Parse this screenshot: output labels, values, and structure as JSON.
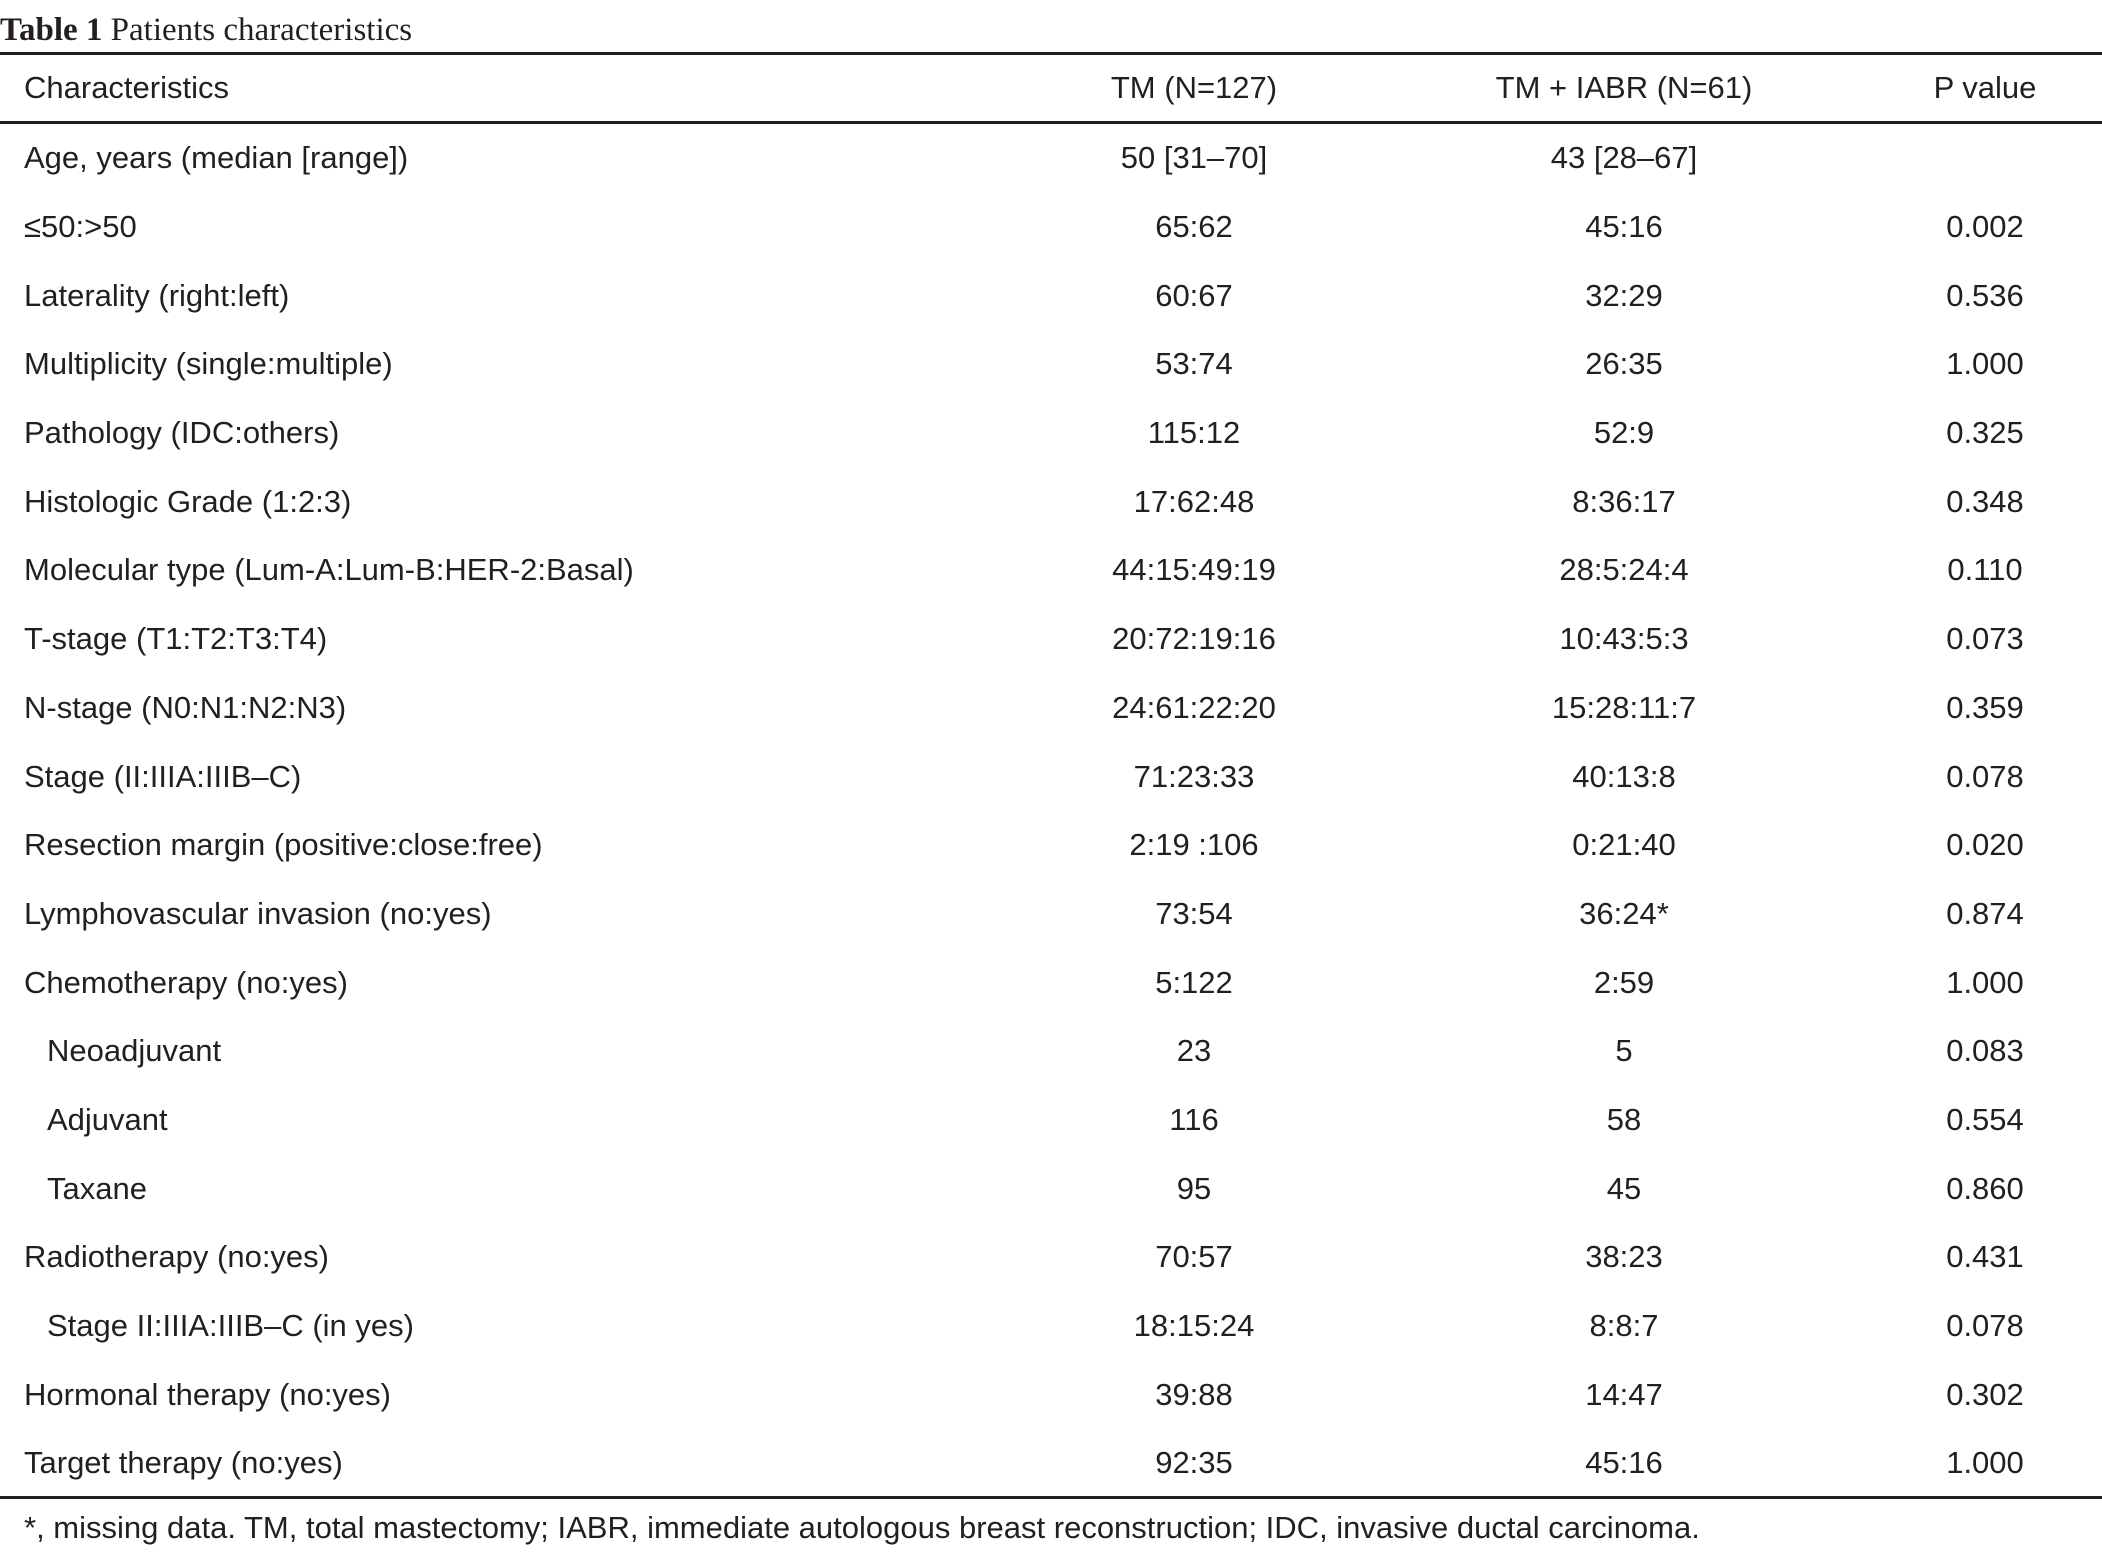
{
  "caption": {
    "label": "Table 1",
    "text": "Patients characteristics"
  },
  "table": {
    "headers": [
      "Characteristics",
      "TM (N=127)",
      "TM + IABR (N=61)",
      "P value"
    ],
    "rows": [
      [
        "Age, years (median [range])",
        "50 [31–70]",
        "43 [28–67]",
        ""
      ],
      [
        "≤50:>50",
        "65:62",
        "45:16",
        "0.002"
      ],
      [
        "Laterality (right:left)",
        "60:67",
        "32:29",
        "0.536"
      ],
      [
        "Multiplicity (single:multiple)",
        "53:74",
        "26:35",
        "1.000"
      ],
      [
        "Pathology (IDC:others)",
        "115:12",
        "52:9",
        "0.325"
      ],
      [
        "Histologic Grade (1:2:3)",
        "17:62:48",
        "8:36:17",
        "0.348"
      ],
      [
        "Molecular type (Lum-A:Lum-B:HER-2:Basal)",
        "44:15:49:19",
        "28:5:24:4",
        "0.110"
      ],
      [
        "T-stage (T1:T2:T3:T4)",
        "20:72:19:16",
        "10:43:5:3",
        "0.073"
      ],
      [
        "N-stage (N0:N1:N2:N3)",
        "24:61:22:20",
        "15:28:11:7",
        "0.359"
      ],
      [
        "Stage (II:IIIA:IIIB–C)",
        "71:23:33",
        "40:13:8",
        "0.078"
      ],
      [
        "Resection margin (positive:close:free)",
        "2:19 :106",
        "0:21:40",
        "0.020"
      ],
      [
        "Lymphovascular invasion (no:yes)",
        "73:54",
        "36:24*",
        "0.874"
      ],
      [
        "Chemotherapy (no:yes)",
        "5:122",
        "2:59",
        "1.000"
      ],
      [
        "Neoadjuvant",
        "23",
        "5",
        "0.083"
      ],
      [
        "Adjuvant",
        "116",
        "58",
        "0.554"
      ],
      [
        "Taxane",
        "95",
        "45",
        "0.860"
      ],
      [
        "Radiotherapy (no:yes)",
        "70:57",
        "38:23",
        "0.431"
      ],
      [
        "Stage II:IIIA:IIIB–C (in yes)",
        "18:15:24",
        "8:8:7",
        "0.078"
      ],
      [
        "Hormonal therapy (no:yes)",
        "39:88",
        "14:47",
        "0.302"
      ],
      [
        "Target therapy (no:yes)",
        "92:35",
        "45:16",
        "1.000"
      ]
    ]
  },
  "footnote": "*, missing data. TM, total mastectomy; IABR, immediate autologous breast reconstruction; IDC, invasive ductal carcinoma."
}
